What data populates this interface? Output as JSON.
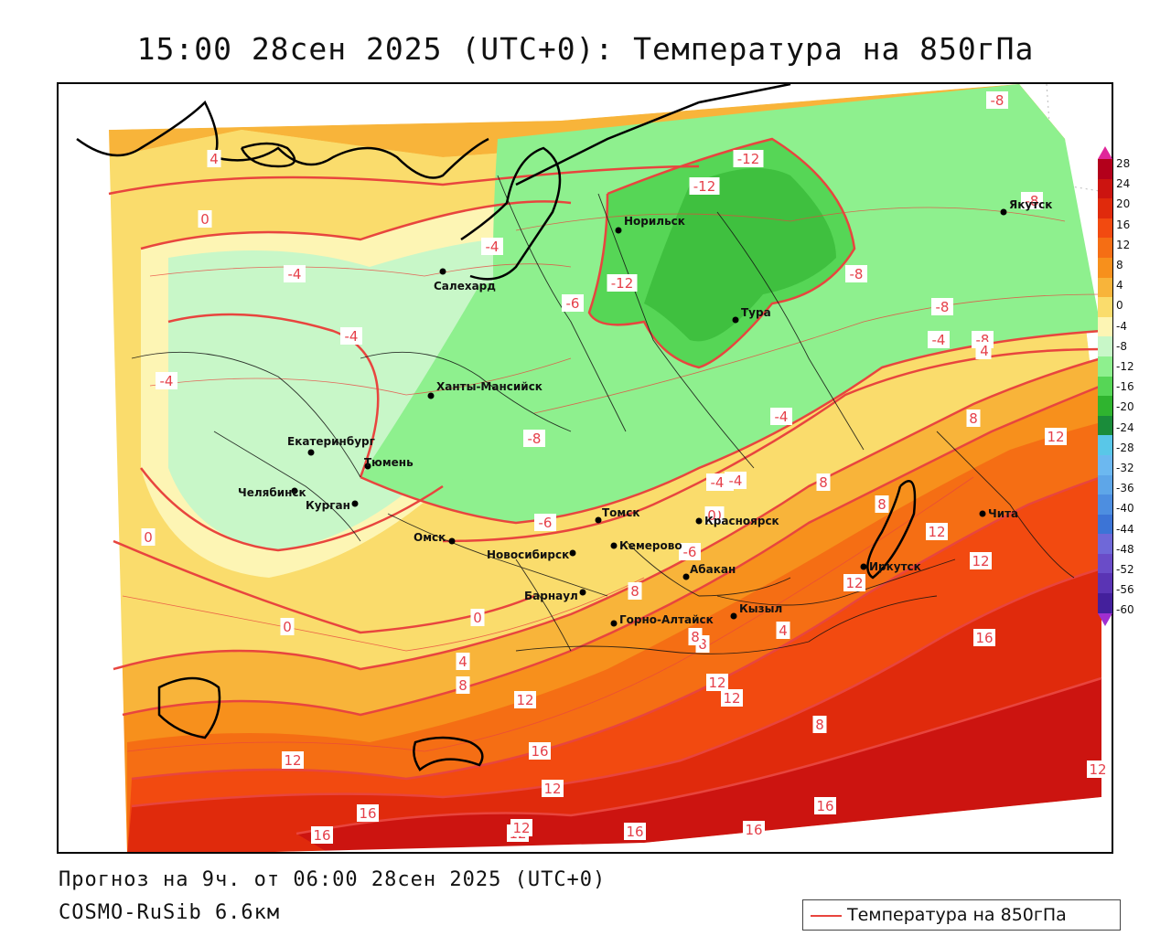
{
  "title": "15:00 28сен 2025 (UTC+0): Температура на 850гПа",
  "footer": {
    "forecast": "Прогноз на 9ч. от 06:00 28сен 2025 (UTC+0)",
    "model": "COSMO-RuSib 6.6км"
  },
  "legend": {
    "label": "Температура на 850гПа",
    "color": "#e8453e"
  },
  "scale": {
    "labels": [
      "28",
      "24",
      "20",
      "16",
      "12",
      "8",
      "4",
      "0",
      "-4",
      "-8",
      "-12",
      "-16",
      "-20",
      "-24",
      "-28",
      "-32",
      "-36",
      "-40",
      "-44",
      "-48",
      "-52",
      "-56",
      "-60"
    ],
    "colors": [
      "#b3001b",
      "#cc1410",
      "#e02a0c",
      "#f24a10",
      "#f56e14",
      "#f7901c",
      "#f8b43a",
      "#fadc6c",
      "#fdf5b4",
      "#c8f7c8",
      "#8ef08e",
      "#56d656",
      "#2fb42f",
      "#1a8c3a",
      "#59c7e8",
      "#6cb8f0",
      "#5ea6e8",
      "#4d8ee0",
      "#3c74d6",
      "#6f68d8",
      "#6a4cc8",
      "#5a34b4",
      "#44209c"
    ]
  },
  "cities": [
    {
      "name": "Норильск"
    },
    {
      "name": "Салехард"
    },
    {
      "name": "Тура"
    },
    {
      "name": "Якутск"
    },
    {
      "name": "Ханты-Мансийск"
    },
    {
      "name": "Екатеринбург"
    },
    {
      "name": "Тюмень"
    },
    {
      "name": "Челябинск"
    },
    {
      "name": "Курган"
    },
    {
      "name": "Омск"
    },
    {
      "name": "Новосибирск"
    },
    {
      "name": "Томск"
    },
    {
      "name": "Кемерово"
    },
    {
      "name": "Красноярск"
    },
    {
      "name": "Барнаул"
    },
    {
      "name": "Абакан"
    },
    {
      "name": "Горно-Алтайск"
    },
    {
      "name": "Кызыл"
    },
    {
      "name": "Иркутск"
    },
    {
      "name": "Чита"
    }
  ],
  "isolines": [
    "-8",
    "4",
    "0",
    "-4",
    "-4",
    "-4",
    "-4",
    "-12",
    "-12",
    "-12",
    "-8",
    "-8",
    "-8",
    "-8",
    "0",
    "-4",
    "-8",
    "-6",
    "-4",
    "0",
    "-8",
    "-4",
    "4",
    "8",
    "8",
    "12",
    "12",
    "12",
    "8",
    "16",
    "0",
    "4",
    "8",
    "12",
    "16",
    "12",
    "12",
    "16",
    "16",
    "12",
    "12",
    "16",
    "12",
    "8",
    "4",
    "8",
    "8",
    "8",
    "12",
    "12",
    "16",
    "16",
    "12",
    "-6",
    "-4",
    "0",
    "-6",
    "0",
    "4"
  ]
}
